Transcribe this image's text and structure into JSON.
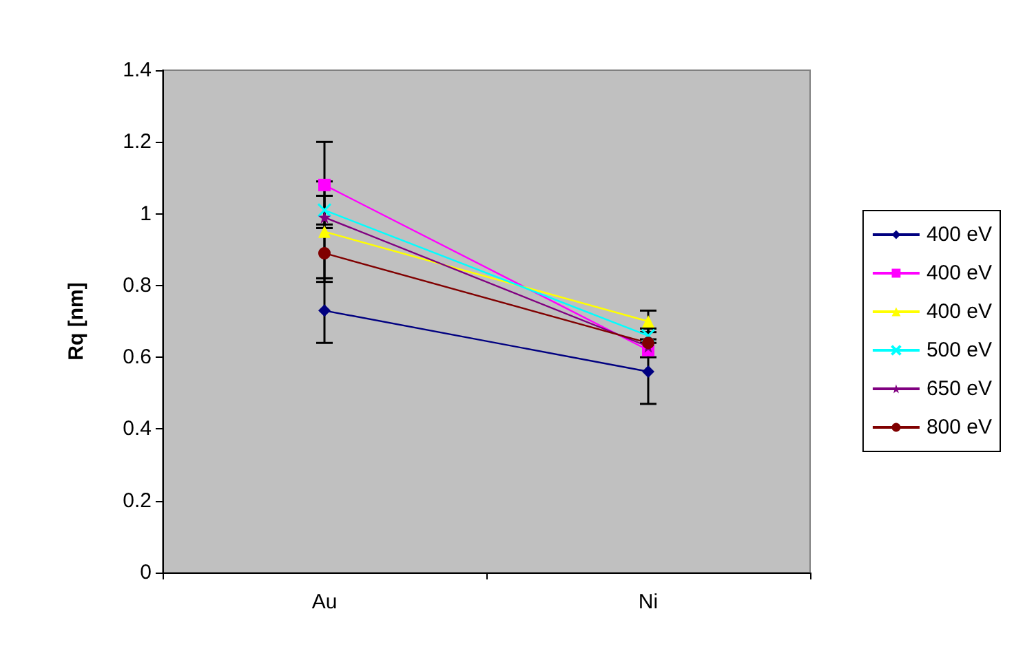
{
  "chart_data": {
    "type": "line",
    "ylabel": "Rq [nm]",
    "categories": [
      "Au",
      "Ni"
    ],
    "ylim": [
      0,
      1.4
    ],
    "yticks": [
      0,
      0.2,
      0.4,
      0.6,
      0.8,
      1,
      1.2,
      1.4
    ],
    "grid": false,
    "legend": "right",
    "line_style": "solid",
    "series": [
      {
        "name": "400 eV",
        "color": "#000080",
        "marker": "diamond",
        "values": [
          0.73,
          0.56
        ],
        "errors": [
          0.09,
          0.09
        ]
      },
      {
        "name": "400 eV",
        "color": "#ff00ff",
        "marker": "square",
        "values": [
          1.08,
          0.62
        ],
        "errors": [
          0.12,
          null
        ]
      },
      {
        "name": "400 eV",
        "color": "#ffff00",
        "marker": "triangle",
        "values": [
          0.95,
          0.7
        ],
        "errors": [
          0.14,
          0.03
        ]
      },
      {
        "name": "500 eV",
        "color": "#00ffff",
        "marker": "cross",
        "values": [
          1.01,
          0.66
        ],
        "errors": [
          0.04,
          0.02
        ]
      },
      {
        "name": "650 eV",
        "color": "#800080",
        "marker": "star",
        "values": [
          0.99,
          0.63
        ],
        "errors": [
          null,
          null
        ]
      },
      {
        "name": "800 eV",
        "color": "#800000",
        "marker": "circle",
        "values": [
          0.89,
          0.64
        ],
        "errors": [
          0.07,
          0.04
        ]
      }
    ]
  }
}
